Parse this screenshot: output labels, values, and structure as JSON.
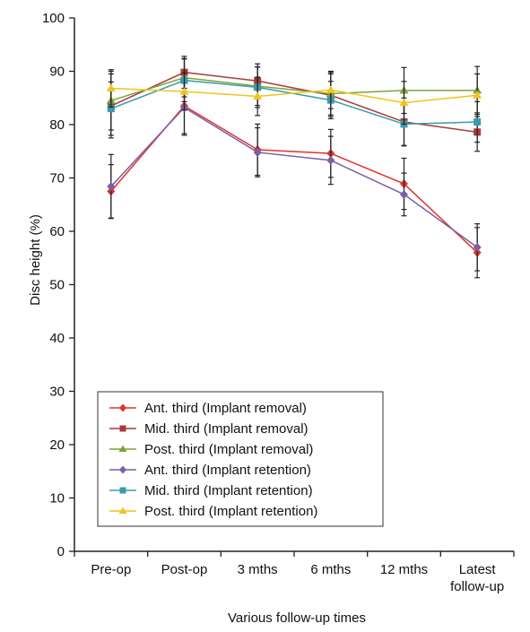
{
  "chart_data": {
    "type": "line",
    "title": "",
    "xlabel": "Various follow-up times",
    "ylabel": "Disc height (%)",
    "ylim": [
      0,
      100
    ],
    "yticks": [
      0,
      10,
      20,
      30,
      40,
      50,
      60,
      70,
      80,
      90,
      100
    ],
    "categories": [
      [
        "Pre-op"
      ],
      [
        "Post-op"
      ],
      [
        "3 mths"
      ],
      [
        "6 mths"
      ],
      [
        "12 mths"
      ],
      [
        "Latest",
        "follow-up"
      ]
    ],
    "grid": false,
    "legend": {
      "placement": "bottom-left"
    },
    "series": [
      {
        "name": "Ant. third (Implant removal)",
        "color": "#e0342c",
        "marker": "diamond",
        "values": [
          67.5,
          83.5,
          75.3,
          74.6,
          68.9,
          56.0
        ],
        "errors": [
          5.0,
          5.2,
          4.8,
          4.5,
          4.8,
          4.7
        ]
      },
      {
        "name": "Mid. third (Implant removal)",
        "color": "#a83a36",
        "marker": "square",
        "values": [
          83.5,
          89.8,
          88.2,
          85.5,
          80.5,
          78.6
        ],
        "errors": [
          6.0,
          3.0,
          3.2,
          4.0,
          4.5,
          3.6
        ]
      },
      {
        "name": "Post. third (Implant removal)",
        "color": "#7da33b",
        "marker": "triangle",
        "values": [
          84.5,
          88.8,
          87.2,
          85.8,
          86.4,
          86.4
        ],
        "errors": [
          5.5,
          3.6,
          3.6,
          4.0,
          4.3,
          4.5
        ]
      },
      {
        "name": "Ant. third (Implant retention)",
        "color": "#7b5ea6",
        "marker": "diamond",
        "values": [
          68.4,
          83.2,
          74.8,
          73.3,
          66.9,
          57.0
        ],
        "errors": [
          6.0,
          5.2,
          4.6,
          4.5,
          4.0,
          4.4
        ]
      },
      {
        "name": "Mid. third (Implant retention)",
        "color": "#3a9aad",
        "marker": "square",
        "values": [
          83.0,
          88.3,
          87.0,
          84.6,
          80.1,
          80.5
        ],
        "errors": [
          5.0,
          4.0,
          3.8,
          3.5,
          4.0,
          3.8
        ]
      },
      {
        "name": "Post. third (Implant retention)",
        "color": "#f2c21f",
        "marker": "triangle",
        "values": [
          86.8,
          86.2,
          85.3,
          86.5,
          84.1,
          85.5
        ],
        "errors": [
          3.5,
          3.5,
          3.6,
          3.5,
          4.0,
          4.0
        ]
      }
    ]
  }
}
